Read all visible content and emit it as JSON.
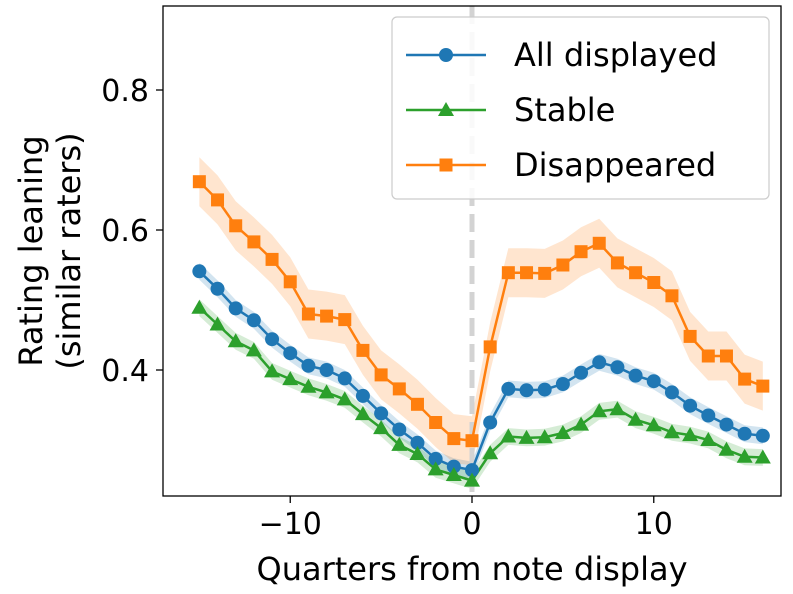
{
  "chart_data": {
    "type": "line",
    "xlabel": "Quarters from note display",
    "ylabel_lines": [
      "Rating leaning",
      "(similar raters)"
    ],
    "xlim": [
      -17,
      17
    ],
    "ylim": [
      0.22,
      0.92
    ],
    "xticks": [
      -10,
      0,
      10
    ],
    "xtick_labels": [
      "−10",
      "0",
      "10"
    ],
    "yticks": [
      0.4,
      0.6,
      0.8
    ],
    "ytick_labels": [
      "0.4",
      "0.6",
      "0.8"
    ],
    "grid": false,
    "reference_line": {
      "x": 0,
      "color": "#d3d3d3",
      "style": "dashed"
    },
    "legend_position": "top-right",
    "x": [
      -15,
      -14,
      -13,
      -12,
      -11,
      -10,
      -9,
      -8,
      -7,
      -6,
      -5,
      -4,
      -3,
      -2,
      -1,
      0,
      1,
      2,
      3,
      4,
      5,
      6,
      7,
      8,
      9,
      10,
      11,
      12,
      13,
      14,
      15,
      16
    ],
    "series": [
      {
        "name": "All displayed",
        "color": "#1f77b4",
        "marker": "circle",
        "band": 0.012,
        "values": [
          0.541,
          0.516,
          0.488,
          0.471,
          0.444,
          0.424,
          0.406,
          0.4,
          0.388,
          0.363,
          0.338,
          0.315,
          0.296,
          0.273,
          0.262,
          0.257,
          0.325,
          0.373,
          0.371,
          0.372,
          0.38,
          0.396,
          0.411,
          0.404,
          0.392,
          0.384,
          0.368,
          0.349,
          0.335,
          0.322,
          0.309,
          0.306
        ]
      },
      {
        "name": "Stable",
        "color": "#2ca02c",
        "marker": "triangle",
        "band": 0.012,
        "values": [
          0.489,
          0.465,
          0.441,
          0.428,
          0.398,
          0.387,
          0.376,
          0.368,
          0.358,
          0.337,
          0.317,
          0.293,
          0.28,
          0.258,
          0.25,
          0.242,
          0.281,
          0.305,
          0.303,
          0.304,
          0.31,
          0.322,
          0.341,
          0.344,
          0.329,
          0.321,
          0.311,
          0.307,
          0.3,
          0.286,
          0.276,
          0.275
        ]
      },
      {
        "name": "Disappeared",
        "color": "#ff7f0e",
        "marker": "square",
        "band": 0.035,
        "values": [
          0.669,
          0.643,
          0.606,
          0.583,
          0.558,
          0.526,
          0.48,
          0.477,
          0.472,
          0.428,
          0.393,
          0.373,
          0.351,
          0.325,
          0.302,
          0.299,
          0.433,
          0.539,
          0.539,
          0.538,
          0.55,
          0.569,
          0.581,
          0.553,
          0.539,
          0.525,
          0.506,
          0.448,
          0.42,
          0.42,
          0.387,
          0.377
        ]
      }
    ]
  }
}
